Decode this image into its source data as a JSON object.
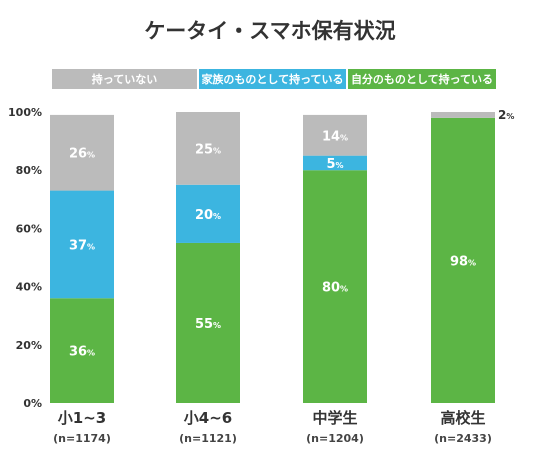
{
  "chart_data": {
    "type": "bar",
    "stacked": true,
    "title": "ケータイ・スマホ保有状況",
    "categories": [
      "小1~3",
      "小4~6",
      "中学生",
      "高校生"
    ],
    "sample_sizes": [
      "(n=1174)",
      "(n=1121)",
      "(n=1204)",
      "(n=2433)"
    ],
    "series": [
      {
        "name": "自分のものとして持っている",
        "color": "#5cb545",
        "values": [
          36,
          55,
          80,
          98
        ]
      },
      {
        "name": "家族のものとして持っている",
        "color": "#3cb5e0",
        "values": [
          37,
          20,
          5,
          0
        ]
      },
      {
        "name": "持っていない",
        "color": "#bbbbbb",
        "values": [
          26,
          25,
          14,
          2
        ]
      }
    ],
    "legend_order": [
      "持っていない",
      "家族のものとして持っている",
      "自分のものとして持っている"
    ],
    "legend_position": "top",
    "value_suffix": "%",
    "ylim": [
      0,
      100
    ],
    "yticks": [
      "0%",
      "20%",
      "40%",
      "60%",
      "80%",
      "100%"
    ],
    "grid": false
  }
}
